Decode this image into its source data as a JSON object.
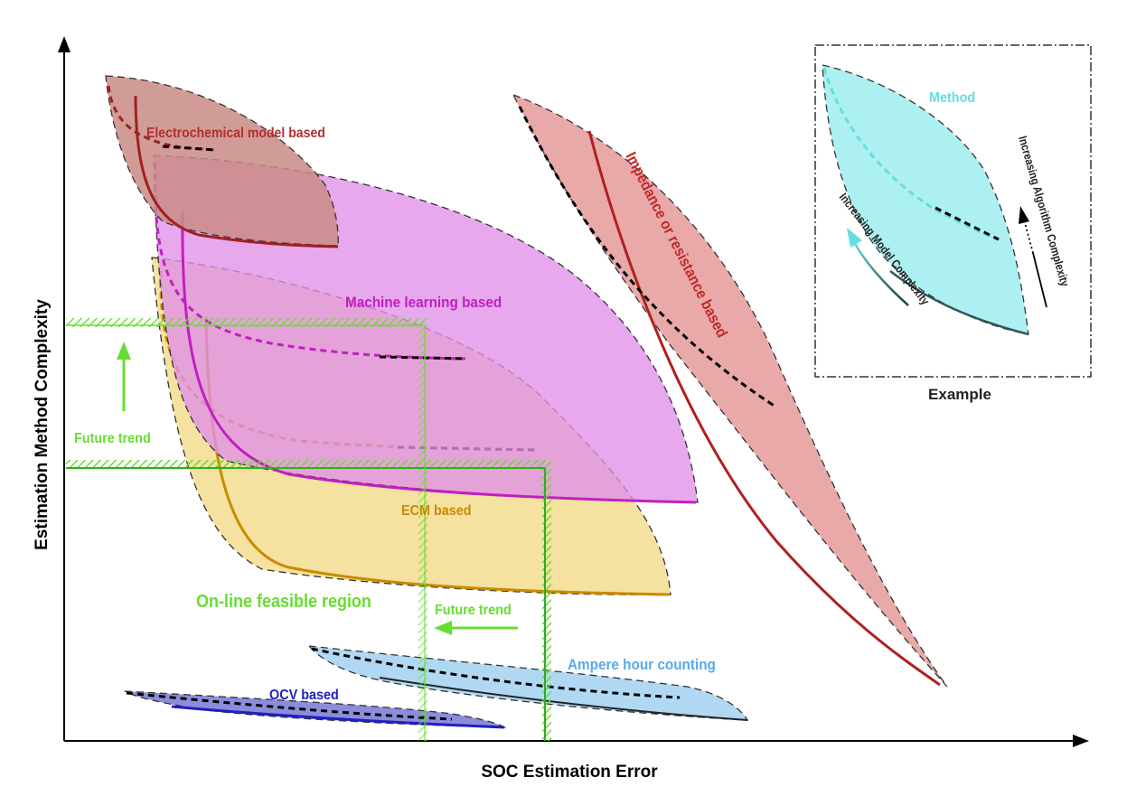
{
  "axes": {
    "x_label": "SOC Estimation Error",
    "y_label": "Estimation Method  Complexity"
  },
  "regions": {
    "electrochemical": {
      "label": "Electrochemical model based",
      "color": "#b03030",
      "fill": "#c98b85"
    },
    "machine_learning": {
      "label": "Machine learning based",
      "color": "#c020c0",
      "fill": "#e090e8"
    },
    "impedance": {
      "label": "Impedance or resistance based",
      "color": "#c02828",
      "fill": "#e59a9a"
    },
    "ecm": {
      "label": "ECM based",
      "color": "#c98a00",
      "fill": "#f3dc8f"
    },
    "ampere_hour": {
      "label": "Ampere hour counting",
      "color": "#5aa9e6",
      "fill": "#a9d4f2"
    },
    "ocv": {
      "label": "OCV based",
      "color": "#2020c0",
      "fill": "#8080d8"
    }
  },
  "feasible_region": {
    "label": "On-line feasible region",
    "color": "#66dd33"
  },
  "trends": {
    "vertical": "Future trend",
    "horizontal": "Future trend"
  },
  "inset": {
    "method_label": "Method",
    "model_complexity": "Increasing Model Complexity",
    "algorithm_complexity": "Increasing Algorithm Complexity",
    "caption": "Example",
    "method_color": "#66dede"
  }
}
